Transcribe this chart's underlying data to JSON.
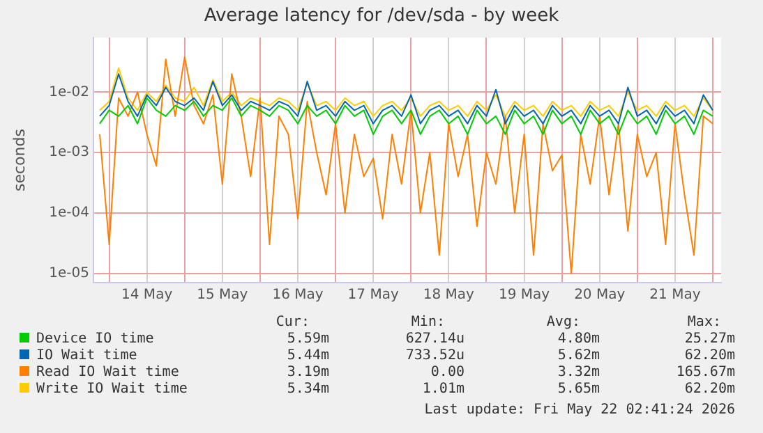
{
  "chart_data": {
    "type": "line",
    "title": "Average latency for /dev/sda - by week",
    "ylabel": "seconds",
    "log": "y",
    "grid": true,
    "legend": "bottom",
    "marker": "none",
    "line_style": "solid",
    "xlim": [
      "2026-05-13T19:00",
      "2026-05-22T02:40"
    ],
    "xticks": [
      {
        "value": "2026-05-14T00:00",
        "label": null
      },
      {
        "value": "2026-05-14T12:00",
        "label": "14 May"
      },
      {
        "value": "2026-05-15T00:00",
        "label": null
      },
      {
        "value": "2026-05-15T12:00",
        "label": "15 May"
      },
      {
        "value": "2026-05-16T00:00",
        "label": null
      },
      {
        "value": "2026-05-16T12:00",
        "label": "16 May"
      },
      {
        "value": "2026-05-17T00:00",
        "label": null
      },
      {
        "value": "2026-05-17T12:00",
        "label": "17 May"
      },
      {
        "value": "2026-05-18T00:00",
        "label": null
      },
      {
        "value": "2026-05-18T12:00",
        "label": "18 May"
      },
      {
        "value": "2026-05-19T00:00",
        "label": null
      },
      {
        "value": "2026-05-19T12:00",
        "label": "19 May"
      },
      {
        "value": "2026-05-20T00:00",
        "label": null
      },
      {
        "value": "2026-05-20T12:00",
        "label": "20 May"
      },
      {
        "value": "2026-05-21T00:00",
        "label": null
      },
      {
        "value": "2026-05-21T12:00",
        "label": "21 May"
      },
      {
        "value": "2026-05-22T00:00",
        "label": null
      }
    ],
    "ylim": [
      7e-06,
      0.08
    ],
    "yticks": [
      {
        "value": 1e-05,
        "label": "1e-05"
      },
      {
        "value": 0.0001,
        "label": "1e-04"
      },
      {
        "value": 0.001,
        "label": "1e-03"
      },
      {
        "value": 0.01,
        "label": "1e-02"
      }
    ],
    "x": [
      "2026-05-13T21:00",
      "2026-05-14T00:00",
      "2026-05-14T03:00",
      "2026-05-14T06:00",
      "2026-05-14T09:00",
      "2026-05-14T12:00",
      "2026-05-14T15:00",
      "2026-05-14T18:00",
      "2026-05-14T21:00",
      "2026-05-15T00:00",
      "2026-05-15T03:00",
      "2026-05-15T06:00",
      "2026-05-15T09:00",
      "2026-05-15T12:00",
      "2026-05-15T15:00",
      "2026-05-15T18:00",
      "2026-05-15T21:00",
      "2026-05-16T00:00",
      "2026-05-16T03:00",
      "2026-05-16T06:00",
      "2026-05-16T09:00",
      "2026-05-16T12:00",
      "2026-05-16T15:00",
      "2026-05-16T18:00",
      "2026-05-16T21:00",
      "2026-05-17T00:00",
      "2026-05-17T03:00",
      "2026-05-17T06:00",
      "2026-05-17T09:00",
      "2026-05-17T12:00",
      "2026-05-17T15:00",
      "2026-05-17T18:00",
      "2026-05-17T21:00",
      "2026-05-18T00:00",
      "2026-05-18T03:00",
      "2026-05-18T06:00",
      "2026-05-18T09:00",
      "2026-05-18T12:00",
      "2026-05-18T15:00",
      "2026-05-18T18:00",
      "2026-05-18T21:00",
      "2026-05-19T00:00",
      "2026-05-19T03:00",
      "2026-05-19T06:00",
      "2026-05-19T09:00",
      "2026-05-19T12:00",
      "2026-05-19T15:00",
      "2026-05-19T18:00",
      "2026-05-19T21:00",
      "2026-05-20T00:00",
      "2026-05-20T03:00",
      "2026-05-20T06:00",
      "2026-05-20T09:00",
      "2026-05-20T12:00",
      "2026-05-20T15:00",
      "2026-05-20T18:00",
      "2026-05-20T21:00",
      "2026-05-21T00:00",
      "2026-05-21T03:00",
      "2026-05-21T06:00",
      "2026-05-21T09:00",
      "2026-05-21T12:00",
      "2026-05-21T15:00",
      "2026-05-21T18:00",
      "2026-05-21T21:00",
      "2026-05-22T00:00"
    ],
    "series": [
      {
        "name": "Device IO time",
        "color": "#00cc00",
        "values": [
          0.003,
          0.005,
          0.004,
          0.006,
          0.003,
          0.008,
          0.005,
          0.004,
          0.006,
          0.005,
          0.007,
          0.004,
          0.006,
          0.005,
          0.008,
          0.004,
          0.006,
          0.005,
          0.004,
          0.006,
          0.005,
          0.003,
          0.006,
          0.004,
          0.005,
          0.003,
          0.006,
          0.004,
          0.005,
          0.002,
          0.004,
          0.005,
          0.003,
          0.005,
          0.002,
          0.004,
          0.005,
          0.003,
          0.004,
          0.002,
          0.005,
          0.003,
          0.004,
          0.002,
          0.005,
          0.003,
          0.004,
          0.002,
          0.005,
          0.003,
          0.004,
          0.002,
          0.005,
          0.003,
          0.004,
          0.002,
          0.005,
          0.003,
          0.004,
          0.002,
          0.005,
          0.003,
          0.004,
          0.002,
          0.005,
          0.004
        ]
      },
      {
        "name": "IO Wait time",
        "color": "#0066b3",
        "values": [
          0.004,
          0.006,
          0.02,
          0.007,
          0.004,
          0.009,
          0.006,
          0.012,
          0.007,
          0.006,
          0.008,
          0.005,
          0.015,
          0.006,
          0.009,
          0.005,
          0.007,
          0.006,
          0.005,
          0.007,
          0.006,
          0.004,
          0.015,
          0.005,
          0.006,
          0.004,
          0.007,
          0.005,
          0.006,
          0.003,
          0.005,
          0.006,
          0.004,
          0.009,
          0.003,
          0.005,
          0.006,
          0.004,
          0.005,
          0.003,
          0.006,
          0.004,
          0.011,
          0.003,
          0.006,
          0.004,
          0.005,
          0.003,
          0.006,
          0.004,
          0.005,
          0.003,
          0.006,
          0.004,
          0.005,
          0.003,
          0.012,
          0.004,
          0.005,
          0.003,
          0.006,
          0.004,
          0.005,
          0.003,
          0.009,
          0.005
        ]
      },
      {
        "name": "Read IO Wait time",
        "color": "#ff8000",
        "values": [
          0.002,
          3e-05,
          0.008,
          0.004,
          0.01,
          0.002,
          0.0006,
          0.035,
          0.004,
          0.038,
          0.006,
          0.003,
          0.009,
          0.0003,
          0.02,
          0.004,
          0.0004,
          0.008,
          3e-05,
          0.004,
          0.002,
          8e-05,
          0.007,
          0.001,
          0.0002,
          0.003,
          0.0001,
          0.002,
          0.0004,
          0.0008,
          8e-05,
          0.002,
          0.0003,
          0.005,
          0.0001,
          0.001,
          2e-05,
          0.003,
          0.0004,
          0.002,
          6e-05,
          0.001,
          0.0003,
          0.004,
          0.0001,
          0.002,
          2e-05,
          0.003,
          0.0005,
          0.0009,
          1e-05,
          0.002,
          0.0003,
          0.004,
          0.0002,
          0.003,
          5e-05,
          0.002,
          0.0004,
          0.001,
          3e-05,
          0.003,
          0.0002,
          2e-05,
          0.004,
          0.003
        ]
      },
      {
        "name": "Write IO Wait time",
        "color": "#ffcc00",
        "values": [
          0.005,
          0.007,
          0.025,
          0.008,
          0.005,
          0.01,
          0.007,
          0.013,
          0.008,
          0.007,
          0.012,
          0.006,
          0.016,
          0.007,
          0.01,
          0.006,
          0.008,
          0.007,
          0.006,
          0.008,
          0.007,
          0.005,
          0.014,
          0.006,
          0.007,
          0.005,
          0.008,
          0.006,
          0.007,
          0.004,
          0.006,
          0.007,
          0.005,
          0.008,
          0.004,
          0.006,
          0.007,
          0.005,
          0.006,
          0.004,
          0.007,
          0.005,
          0.009,
          0.004,
          0.007,
          0.005,
          0.006,
          0.004,
          0.007,
          0.005,
          0.006,
          0.004,
          0.007,
          0.005,
          0.006,
          0.004,
          0.01,
          0.005,
          0.006,
          0.004,
          0.007,
          0.005,
          0.006,
          0.004,
          0.008,
          0.005
        ]
      }
    ],
    "annotations": [
      "Cur:",
      "Min:",
      "Avg:",
      "Max:",
      "5.59m",
      "627.14u",
      "4.80m",
      "25.27m",
      "5.44m",
      "733.52u",
      "5.62m",
      "62.20m",
      "3.19m",
      "0.00",
      "3.32m",
      "165.67m",
      "5.34m",
      "1.01m",
      "5.65m",
      "62.20m",
      "Last update: Fri May 22 02:41:24 2026"
    ]
  }
}
